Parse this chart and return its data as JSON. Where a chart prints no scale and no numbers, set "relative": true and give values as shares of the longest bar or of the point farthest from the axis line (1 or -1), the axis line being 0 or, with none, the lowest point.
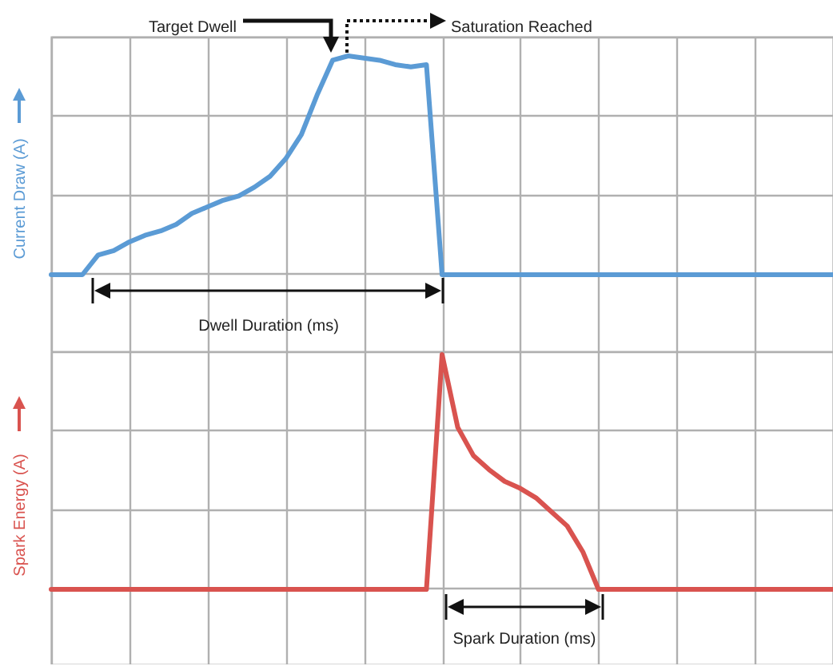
{
  "chart_data": [
    {
      "type": "line",
      "ylabel": "Current Draw (A)",
      "relative": true,
      "grid": true,
      "categories": [
        null,
        null,
        null,
        null,
        null,
        null,
        null,
        null,
        null,
        null,
        null,
        null,
        null,
        null,
        null,
        null,
        null,
        null,
        null,
        null,
        null,
        null,
        null,
        null,
        null,
        null,
        null,
        null,
        null,
        null,
        null,
        null,
        null,
        null,
        null,
        null,
        null,
        null,
        null,
        null,
        null,
        null,
        null,
        null,
        null,
        null,
        null,
        null,
        null,
        null,
        null
      ],
      "series": [
        {
          "color": "#5b9bd5",
          "values": [
            0,
            0,
            0,
            0.09,
            0.11,
            0.15,
            0.18,
            0.2,
            0.23,
            0.28,
            0.31,
            0.34,
            0.36,
            0.4,
            0.45,
            0.53,
            0.64,
            0.82,
            0.98,
            1,
            0.99,
            0.98,
            0.96,
            0.95,
            0.96,
            0,
            0,
            0,
            0,
            0,
            0,
            0,
            0,
            0,
            0,
            0,
            0,
            0,
            0,
            0,
            0,
            0,
            0,
            0,
            0,
            0,
            0,
            0,
            0,
            0,
            0
          ]
        }
      ],
      "annotations": [
        "Target Dwell",
        "Saturation Reached",
        "Dwell Duration (ms)"
      ]
    },
    {
      "type": "line",
      "ylabel": "Spark Energy (A)",
      "relative": true,
      "grid": true,
      "categories": [
        null,
        null,
        null,
        null,
        null,
        null,
        null,
        null,
        null,
        null,
        null,
        null,
        null,
        null,
        null,
        null,
        null,
        null,
        null,
        null,
        null,
        null,
        null,
        null,
        null,
        null,
        null,
        null,
        null,
        null,
        null,
        null,
        null,
        null,
        null,
        null,
        null,
        null,
        null,
        null,
        null,
        null,
        null,
        null,
        null,
        null,
        null,
        null,
        null,
        null,
        null
      ],
      "series": [
        {
          "color": "#d9534f",
          "values": [
            0,
            0,
            0,
            0,
            0,
            0,
            0,
            0,
            0,
            0,
            0,
            0,
            0,
            0,
            0,
            0,
            0,
            0,
            0,
            0,
            0,
            0,
            0,
            0,
            0,
            1,
            0.69,
            0.57,
            0.51,
            0.46,
            0.43,
            0.39,
            0.33,
            0.27,
            0.16,
            0,
            0,
            0,
            0,
            0,
            0,
            0,
            0,
            0,
            0,
            0,
            0,
            0,
            0,
            0,
            0
          ]
        }
      ],
      "annotations": [
        "Spark Duration (ms)"
      ]
    }
  ]
}
